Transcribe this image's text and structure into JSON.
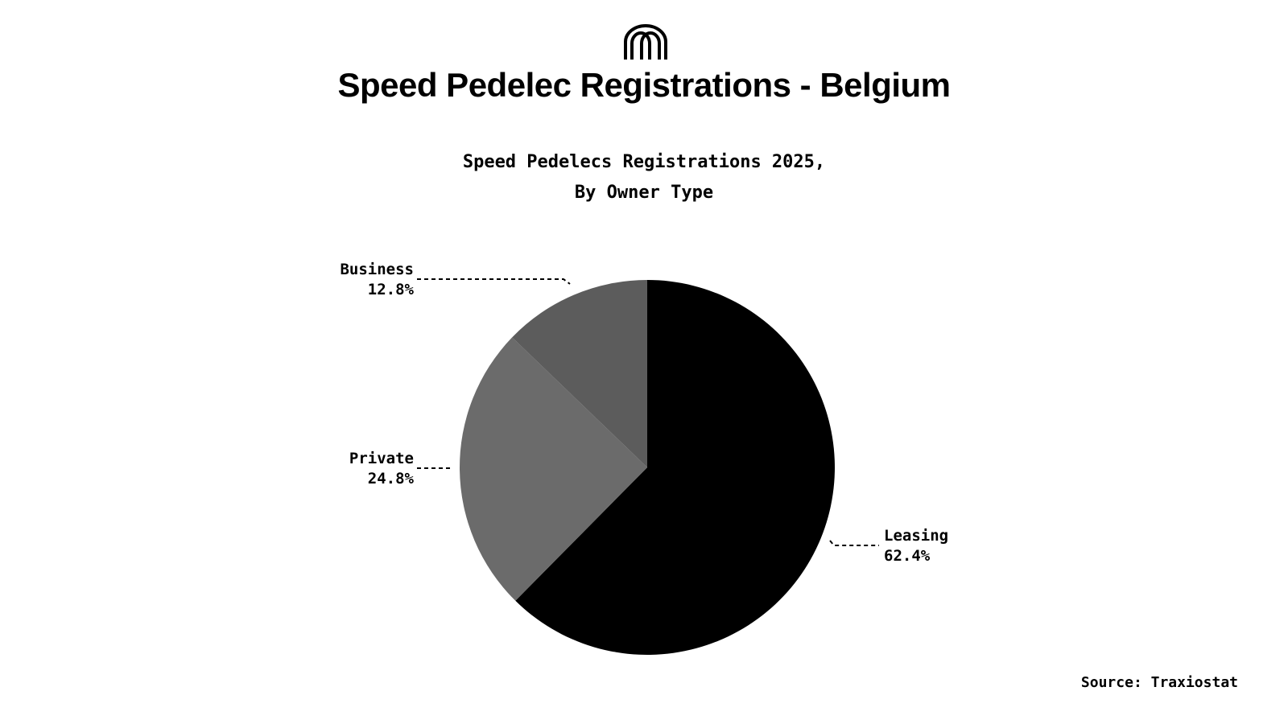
{
  "header": {
    "logo_icon": "arches-logo-icon",
    "title": "Speed Pedelec Registrations - Belgium"
  },
  "chart_data": {
    "type": "pie",
    "title_line1": "Speed Pedelecs Registrations 2025,",
    "title_line2": "By Owner Type",
    "slices": [
      {
        "label": "Leasing",
        "value": 62.4,
        "value_label": "62.4%",
        "color": "#000000"
      },
      {
        "label": "Private",
        "value": 24.8,
        "value_label": "24.8%",
        "color": "#6b6b6b"
      },
      {
        "label": "Business",
        "value": 12.8,
        "value_label": "12.8%",
        "color": "#5c5c5c"
      }
    ],
    "start": "12 o'clock",
    "direction": "clockwise",
    "labels": "outside with dashed leader lines"
  },
  "footer": {
    "source": "Source: Traxiostat"
  }
}
